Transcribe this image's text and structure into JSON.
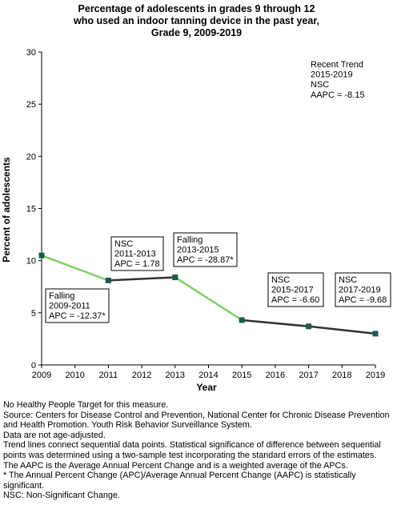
{
  "chart_data": {
    "type": "line",
    "title_lines": [
      "Percentage of adolescents in grades 9 through 12",
      "who used an indoor tanning device in the past year,",
      "Grade 9,  2009-2019"
    ],
    "xlabel": "Year",
    "ylabel": "Percent of adolescents",
    "xlim": [
      2009,
      2019
    ],
    "ylim": [
      0,
      30
    ],
    "x_ticks": [
      2009,
      2010,
      2011,
      2012,
      2013,
      2014,
      2015,
      2016,
      2017,
      2018,
      2019
    ],
    "y_ticks": [
      0,
      5,
      10,
      15,
      20,
      25,
      30
    ],
    "points": [
      {
        "x": 2009,
        "y": 10.5
      },
      {
        "x": 2011,
        "y": 8.1
      },
      {
        "x": 2013,
        "y": 8.4
      },
      {
        "x": 2015,
        "y": 4.3
      },
      {
        "x": 2017,
        "y": 3.7
      },
      {
        "x": 2019,
        "y": 3.0
      }
    ],
    "segments": [
      {
        "from": 2009,
        "to": 2011,
        "status": "Falling"
      },
      {
        "from": 2011,
        "to": 2013,
        "status": "NSC"
      },
      {
        "from": 2013,
        "to": 2015,
        "status": "Falling"
      },
      {
        "from": 2015,
        "to": 2017,
        "status": "NSC"
      },
      {
        "from": 2017,
        "to": 2019,
        "status": "NSC"
      }
    ],
    "annotations": [
      {
        "id": "recent-trend",
        "lines": [
          "Recent Trend",
          "2015-2019",
          "NSC",
          "AAPC = -8.15"
        ],
        "boxed": false
      },
      {
        "id": "seg-2009-2011",
        "lines": [
          "Falling",
          "2009-2011",
          "APC = -12.37*"
        ],
        "boxed": true
      },
      {
        "id": "seg-2011-2013",
        "lines": [
          "NSC",
          "2011-2013",
          "APC =  1.78"
        ],
        "boxed": true
      },
      {
        "id": "seg-2013-2015",
        "lines": [
          "Falling",
          "2013-2015",
          "APC = -28.87*"
        ],
        "boxed": true
      },
      {
        "id": "seg-2015-2017",
        "lines": [
          "NSC",
          "2015-2017",
          "APC = -6.60"
        ],
        "boxed": true
      },
      {
        "id": "seg-2017-2019",
        "lines": [
          "NSC",
          "2017-2019",
          "APC = -9.68"
        ],
        "boxed": true
      }
    ],
    "colors": {
      "falling": "#7fd06a",
      "nsc": "#333333",
      "marker": "#1e5a50"
    },
    "grid": false,
    "legend": "none"
  },
  "notes": [
    "No Healthy People Target for this measure.",
    "Source: Centers for Disease Control and Prevention, National Center for Chronic Disease Prevention and Health Promotion. Youth Risk Behavior Surveillance System.",
    "Data are not age-adjusted.",
    "Trend lines connect sequential data points. Statistical significance of difference between sequential points was determined using a two-sample test incorporating the standard errors of the estimates.",
    "The AAPC is the Average Annual Percent Change and is a weighted average of the APCs.",
    "* The Annual Percent Change (APC)/Average Annual Percent Change (AAPC) is statistically significant.",
    "NSC: Non-Significant Change."
  ]
}
